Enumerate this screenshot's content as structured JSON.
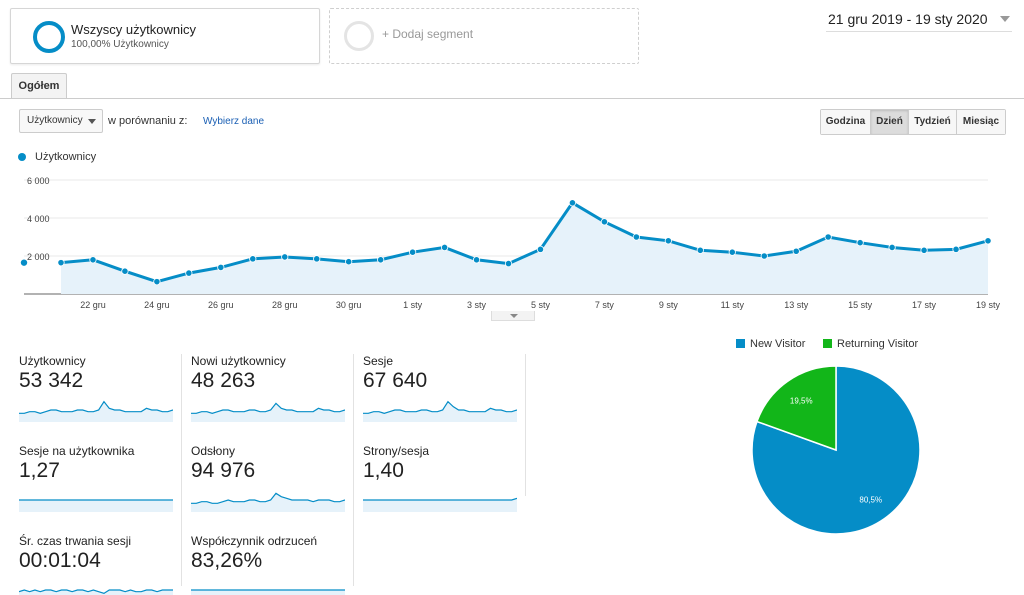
{
  "segments": {
    "active": {
      "title": "Wszyscy użytkownicy",
      "subtitle": "100,00% Użytkownicy"
    },
    "add_label": "+ Dodaj segment"
  },
  "date_range": "21 gru 2019 - 19 sty 2020",
  "tabs": [
    {
      "label": "Ogółem"
    }
  ],
  "toolbar": {
    "metric_select": "Użytkownicy",
    "compare_label": "w porównaniu z:",
    "compare_link": "Wybierz dane",
    "intervals": [
      {
        "label": "Godzina",
        "active": false
      },
      {
        "label": "Dzień",
        "active": true
      },
      {
        "label": "Tydzień",
        "active": false
      },
      {
        "label": "Miesiąc",
        "active": false
      }
    ]
  },
  "colors": {
    "primary": "#058dc7",
    "area": "#e6f2fa",
    "new_visitor": "#058dc7",
    "returning_visitor": "#12b619"
  },
  "chart_data": [
    {
      "type": "area",
      "legend": "top-left",
      "series": [
        {
          "name": "Użytkownicy"
        }
      ],
      "y_ticks": [
        "2 000",
        "4 000",
        "6 000"
      ],
      "ylim": [
        0,
        6000
      ],
      "x_tick_labels": [
        "22 gru",
        "24 gru",
        "26 gru",
        "28 gru",
        "30 gru",
        "1 sty",
        "3 sty",
        "5 sty",
        "7 sty",
        "9 sty",
        "11 sty",
        "13 sty",
        "15 sty",
        "17 sty",
        "19 sty"
      ],
      "dates": [
        "21 gru",
        "22 gru",
        "23 gru",
        "24 gru",
        "25 gru",
        "26 gru",
        "27 gru",
        "28 gru",
        "29 gru",
        "30 gru",
        "31 gru",
        "1 sty",
        "2 sty",
        "3 sty",
        "4 sty",
        "5 sty",
        "6 sty",
        "7 sty",
        "8 sty",
        "9 sty",
        "10 sty",
        "11 sty",
        "12 sty",
        "13 sty",
        "14 sty",
        "15 sty",
        "16 sty",
        "17 sty",
        "18 sty",
        "19 sty"
      ],
      "values": [
        1650,
        1800,
        1200,
        650,
        1100,
        1400,
        1850,
        1950,
        1850,
        1700,
        1800,
        2200,
        2450,
        1800,
        1600,
        2350,
        4800,
        3800,
        3000,
        2800,
        2300,
        2200,
        2000,
        2250,
        3000,
        2700,
        2450,
        2300,
        2350,
        2800
      ],
      "grid": true
    },
    {
      "type": "pie",
      "legend": "top",
      "slices": [
        {
          "label": "New Visitor",
          "value": 80.5,
          "display": "80,5%"
        },
        {
          "label": "Returning Visitor",
          "value": 19.5,
          "display": "19,5%"
        }
      ]
    }
  ],
  "kpis": [
    {
      "label": "Użytkownicy",
      "value": "53 342",
      "spark": [
        4,
        4,
        5,
        5,
        4,
        5,
        6,
        6,
        5,
        5,
        5,
        6,
        6,
        5,
        5,
        6,
        11,
        7,
        6,
        6,
        5,
        5,
        5,
        5,
        7,
        6,
        6,
        5,
        5,
        6
      ]
    },
    {
      "label": "Nowi użytkownicy",
      "value": "48 263",
      "spark": [
        4,
        4,
        5,
        5,
        4,
        5,
        6,
        6,
        5,
        5,
        5,
        6,
        6,
        5,
        5,
        6,
        10,
        7,
        6,
        6,
        5,
        5,
        5,
        5,
        7,
        6,
        6,
        5,
        5,
        6
      ]
    },
    {
      "label": "Sesje",
      "value": "67 640",
      "spark": [
        4,
        4,
        5,
        5,
        4,
        5,
        6,
        6,
        5,
        5,
        5,
        6,
        6,
        5,
        5,
        6,
        11,
        8,
        6,
        6,
        5,
        5,
        5,
        5,
        7,
        6,
        6,
        5,
        5,
        6
      ]
    },
    {
      "label": "Sesje na użytkownika",
      "value": "1,27",
      "spark": [
        6,
        6,
        6,
        6,
        6,
        6,
        6,
        6,
        6,
        6,
        6,
        6,
        6,
        6,
        6,
        6,
        6,
        6,
        6,
        6,
        6,
        6,
        6,
        6,
        6,
        6,
        6,
        6,
        6,
        6
      ]
    },
    {
      "label": "Odsłony",
      "value": "94 976",
      "spark": [
        4,
        4,
        5,
        5,
        4,
        4,
        5,
        6,
        5,
        5,
        5,
        6,
        6,
        5,
        5,
        6,
        10,
        8,
        7,
        6,
        6,
        6,
        6,
        5,
        6,
        6,
        6,
        5,
        5,
        6
      ]
    },
    {
      "label": "Strony/sesja",
      "value": "1,40",
      "spark": [
        6,
        6,
        6,
        6,
        6,
        6,
        6,
        6,
        6,
        6,
        6,
        6,
        6,
        6,
        6,
        6,
        6,
        6,
        6,
        6,
        6,
        6,
        6,
        6,
        6,
        6,
        6,
        6,
        6,
        7
      ]
    },
    {
      "label": "Śr. czas trwania sesji",
      "value": "00:01:04",
      "spark": [
        5,
        6,
        5,
        6,
        5,
        6,
        6,
        5,
        6,
        6,
        5,
        6,
        6,
        5,
        6,
        5,
        4,
        6,
        6,
        6,
        5,
        6,
        5,
        5,
        6,
        6,
        5,
        6,
        6,
        6
      ]
    },
    {
      "label": "Współczynnik odrzuceń",
      "value": "83,26%",
      "spark": [
        6,
        6,
        6,
        6,
        6,
        6,
        6,
        6,
        6,
        6,
        6,
        6,
        6,
        6,
        6,
        6,
        6,
        6,
        6,
        6,
        6,
        6,
        6,
        6,
        6,
        6,
        6,
        6,
        6,
        6
      ]
    }
  ]
}
